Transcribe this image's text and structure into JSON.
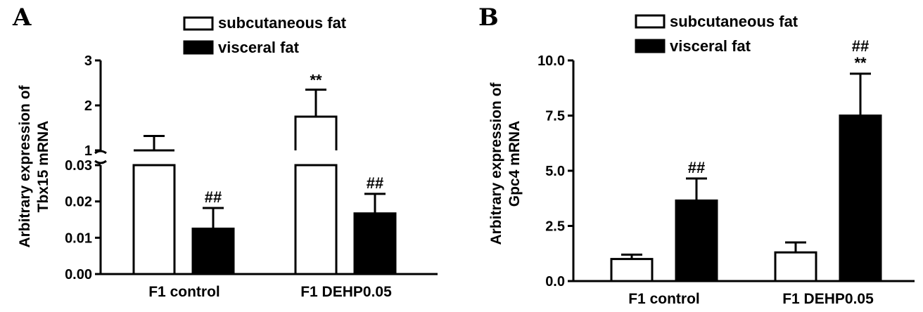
{
  "chart_data": [
    {
      "panel": "A",
      "type": "bar",
      "categories": [
        "F1 control",
        "F1 DEHP0.05"
      ],
      "ylabel_lines": [
        "Arbitrary expression of",
        "Tbx15 mRNA"
      ],
      "xlabel": "",
      "axis_break": true,
      "lower_ylim": [
        0,
        0.03
      ],
      "lower_ticks": [
        "0.00",
        "0.01",
        "0.02",
        "0.03"
      ],
      "upper_ylim": [
        1,
        3
      ],
      "upper_ticks": [
        "1",
        "2",
        "3"
      ],
      "series": [
        {
          "name": "subcutaneous fat",
          "fill": "#ffffff",
          "values": [
            1.0,
            1.75
          ],
          "errors": [
            0.32,
            0.6
          ],
          "annotations": [
            "",
            "**"
          ]
        },
        {
          "name": "visceral fat",
          "fill": "#000000",
          "values": [
            0.0125,
            0.0167
          ],
          "errors": [
            0.0057,
            0.0054
          ],
          "annotations": [
            "##",
            "##"
          ]
        }
      ],
      "legend": "top"
    },
    {
      "panel": "B",
      "type": "bar",
      "categories": [
        "F1 control",
        "F1 DEHP0.05"
      ],
      "ylabel_lines": [
        "Arbitrary expression of",
        "Gpc4 mRNA"
      ],
      "xlabel": "",
      "ylim": [
        0,
        10
      ],
      "yticks": [
        "0.0",
        "2.5",
        "5.0",
        "7.5",
        "10.0"
      ],
      "series": [
        {
          "name": "subcutaneous fat",
          "fill": "#ffffff",
          "values": [
            1.0,
            1.3
          ],
          "errors": [
            0.2,
            0.45
          ],
          "annotations": [
            "",
            ""
          ]
        },
        {
          "name": "visceral fat",
          "fill": "#000000",
          "values": [
            3.65,
            7.5
          ],
          "errors": [
            1.0,
            1.9
          ],
          "annotations": [
            "##",
            "##|**"
          ]
        }
      ],
      "legend": "top"
    }
  ]
}
